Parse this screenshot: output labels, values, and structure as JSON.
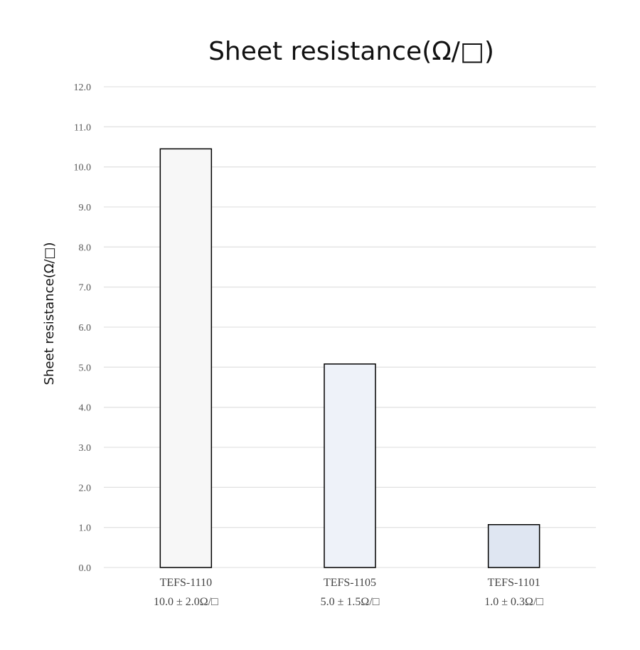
{
  "chart_data": {
    "type": "bar",
    "title": "Sheet resistance(Ω/□)",
    "xlabel": "",
    "ylabel": "Sheet resistance(Ω/□)",
    "ylim": [
      0,
      12
    ],
    "yticks": [
      "0.0",
      "1.0",
      "2.0",
      "3.0",
      "4.0",
      "5.0",
      "6.0",
      "7.0",
      "8.0",
      "9.0",
      "10.0",
      "11.0",
      "12.0"
    ],
    "categories": [
      {
        "name": "TEFS-1110",
        "spec": "10.0 ± 2.0Ω/□"
      },
      {
        "name": "TEFS-1105",
        "spec": "5.0 ± 1.5Ω/□"
      },
      {
        "name": "TEFS-1101",
        "spec": "1.0 ± 0.3Ω/□"
      }
    ],
    "values": [
      10.45,
      5.08,
      1.07
    ],
    "bar_colors": [
      "#f7f7f7",
      "#eef2f9",
      "#dfe6f2"
    ],
    "grid": true,
    "legend": "none"
  }
}
